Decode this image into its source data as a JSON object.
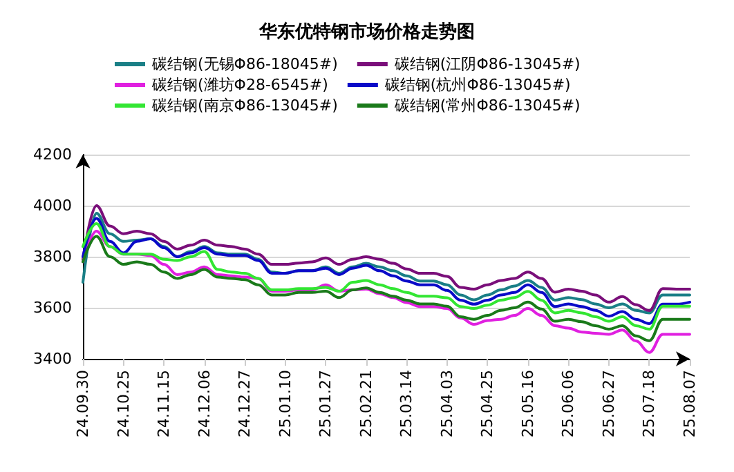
{
  "chart_data": {
    "type": "line",
    "title": "华东优特钢市场价格走势图",
    "categories": [
      "24.09.30",
      null,
      null,
      "24.10.25",
      null,
      null,
      "24.11.15",
      null,
      null,
      "24.12.06",
      null,
      null,
      "24.12.27",
      null,
      null,
      "25.01.10",
      null,
      null,
      "25.01.27",
      null,
      null,
      "25.02.21",
      null,
      null,
      "25.03.14",
      null,
      null,
      "25.04.03",
      null,
      null,
      "25.04.25",
      null,
      null,
      "25.05.16",
      null,
      null,
      "25.06.06",
      null,
      null,
      "25.06.27",
      null,
      null,
      "25.07.18",
      null,
      null,
      "25.08.07"
    ],
    "series": [
      {
        "name": "碳结钢(无锡Φ86-18045#)",
        "color": "#1a7f86",
        "values": [
          3700,
          3970,
          3890,
          3860,
          3865,
          3870,
          3840,
          3800,
          3820,
          3840,
          3815,
          3810,
          3810,
          3790,
          3740,
          3735,
          3745,
          3745,
          3760,
          3735,
          3760,
          3774,
          3760,
          3745,
          3725,
          3705,
          3705,
          3690,
          3650,
          3631,
          3650,
          3670,
          3685,
          3707,
          3680,
          3630,
          3640,
          3632,
          3615,
          3600,
          3615,
          3590,
          3580,
          3650,
          3650,
          3650
        ]
      },
      {
        "name": "碳结钢(江阴Φ86-13045#)",
        "color": "#7a0f7a",
        "values": [
          3790,
          4000,
          3920,
          3890,
          3900,
          3890,
          3860,
          3830,
          3845,
          3865,
          3845,
          3840,
          3830,
          3810,
          3770,
          3770,
          3775,
          3780,
          3795,
          3770,
          3790,
          3800,
          3790,
          3774,
          3752,
          3735,
          3735,
          3723,
          3680,
          3673,
          3690,
          3707,
          3715,
          3740,
          3715,
          3661,
          3673,
          3665,
          3650,
          3622,
          3644,
          3612,
          3589,
          3675,
          3673,
          3673
        ]
      },
      {
        "name": "碳结钢(潍坊Φ28-6545#)",
        "color": "#e020e0",
        "values": [
          3780,
          3900,
          3840,
          3810,
          3810,
          3805,
          3770,
          3730,
          3740,
          3760,
          3730,
          3725,
          3720,
          3715,
          3665,
          3665,
          3670,
          3670,
          3690,
          3665,
          3670,
          3673,
          3655,
          3640,
          3620,
          3605,
          3605,
          3597,
          3560,
          3535,
          3550,
          3555,
          3570,
          3597,
          3570,
          3530,
          3520,
          3505,
          3500,
          3496,
          3513,
          3470,
          3425,
          3496,
          3496,
          3496
        ]
      },
      {
        "name": "碳结钢(杭州Φ86-13045#)",
        "color": "#0a0ac8",
        "values": [
          3800,
          3950,
          3860,
          3815,
          3860,
          3870,
          3835,
          3800,
          3815,
          3835,
          3810,
          3805,
          3805,
          3785,
          3735,
          3735,
          3745,
          3745,
          3755,
          3730,
          3755,
          3766,
          3745,
          3725,
          3705,
          3690,
          3690,
          3668,
          3630,
          3614,
          3630,
          3650,
          3660,
          3690,
          3660,
          3605,
          3615,
          3605,
          3590,
          3567,
          3585,
          3555,
          3538,
          3614,
          3614,
          3622
        ]
      },
      {
        "name": "碳结钢(南京Φ86-13045#)",
        "color": "#33e633",
        "values": [
          3840,
          3930,
          3840,
          3810,
          3810,
          3810,
          3790,
          3785,
          3800,
          3820,
          3750,
          3740,
          3735,
          3715,
          3670,
          3670,
          3675,
          3675,
          3680,
          3665,
          3700,
          3707,
          3690,
          3675,
          3660,
          3645,
          3645,
          3639,
          3605,
          3597,
          3610,
          3630,
          3640,
          3664,
          3630,
          3580,
          3590,
          3580,
          3565,
          3547,
          3565,
          3530,
          3516,
          3606,
          3606,
          3606
        ]
      },
      {
        "name": "碳结钢(常州Φ86-13045#)",
        "color": "#1a7a1a",
        "values": [
          3780,
          3880,
          3800,
          3770,
          3780,
          3770,
          3740,
          3715,
          3730,
          3750,
          3720,
          3715,
          3710,
          3690,
          3650,
          3650,
          3660,
          3660,
          3665,
          3640,
          3670,
          3678,
          3660,
          3645,
          3630,
          3615,
          3615,
          3606,
          3565,
          3555,
          3570,
          3590,
          3600,
          3622,
          3595,
          3547,
          3555,
          3545,
          3530,
          3516,
          3530,
          3490,
          3471,
          3555,
          3555,
          3555
        ]
      }
    ],
    "ylim": [
      3400,
      4200
    ],
    "yticks": [
      3400,
      3600,
      3800,
      4000,
      4200
    ],
    "grid": "y",
    "legend": "top",
    "marker": "none",
    "line_style": "solid"
  }
}
